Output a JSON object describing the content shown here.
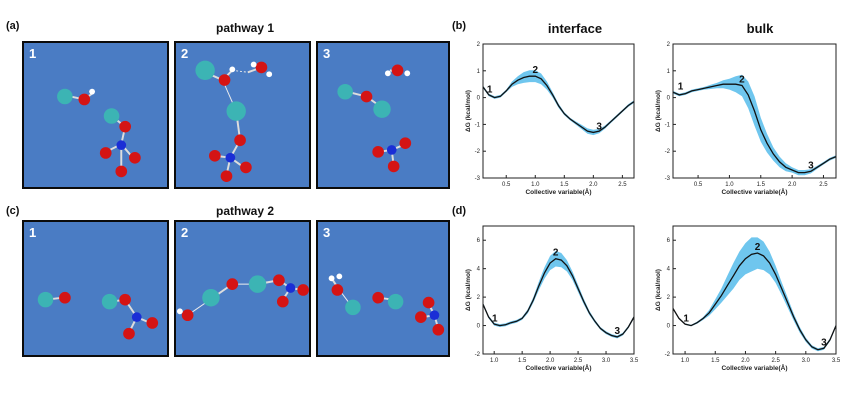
{
  "panel_labels": {
    "a": "(a)",
    "b": "(b)",
    "c": "(c)",
    "d": "(d)"
  },
  "pathway1_title": "pathway 1",
  "pathway2_title": "pathway 2",
  "column_titles": {
    "interface": "interface",
    "bulk": "bulk"
  },
  "snapshot_steps": [
    "1",
    "2",
    "3"
  ],
  "colors": {
    "water_bg": "#4a7cc4",
    "curve": "#111111",
    "band": "#6fc6ee",
    "oxygen": "#d41414",
    "nitrogen": "#1a2ed6",
    "cl_atom": "#3cb4b4",
    "hydrogen": "#ffffff"
  },
  "chart_data": [
    {
      "type": "line",
      "name": "interface",
      "row": "top",
      "xlabel": "Collective variable(Å)",
      "ylabel": "ΔG (kcal/mol)",
      "xlim": [
        0.1,
        2.7
      ],
      "ylim": [
        -3,
        2
      ],
      "xticks": [
        0.5,
        1.0,
        1.5,
        2.0,
        2.5
      ],
      "xtick_labels": [
        "0.5",
        "1.0",
        "1.5",
        "2.0",
        "2.5"
      ],
      "yticks": [
        -3,
        -2,
        -1,
        0,
        1,
        2
      ],
      "ytick_labels": [
        "-3",
        "-2",
        "-1",
        "0",
        "1",
        "2"
      ],
      "x": [
        0.1,
        0.2,
        0.3,
        0.4,
        0.5,
        0.6,
        0.7,
        0.8,
        0.9,
        1.0,
        1.1,
        1.2,
        1.3,
        1.4,
        1.5,
        1.6,
        1.7,
        1.8,
        1.9,
        2.0,
        2.1,
        2.2,
        2.3,
        2.4,
        2.5,
        2.6,
        2.7
      ],
      "y": [
        0.4,
        0.1,
        0.0,
        0.05,
        0.25,
        0.5,
        0.65,
        0.75,
        0.8,
        0.8,
        0.7,
        0.45,
        0.1,
        -0.3,
        -0.6,
        -0.8,
        -0.95,
        -1.1,
        -1.25,
        -1.3,
        -1.25,
        -1.1,
        -0.9,
        -0.7,
        -0.5,
        -0.3,
        -0.15
      ],
      "band": [
        0.05,
        0.05,
        0.05,
        0.05,
        0.05,
        0.1,
        0.15,
        0.2,
        0.22,
        0.22,
        0.2,
        0.15,
        0.1,
        0.08,
        0.06,
        0.05,
        0.06,
        0.08,
        0.1,
        0.1,
        0.08,
        0.06,
        0.05,
        0.05,
        0.05,
        0.05,
        0.05
      ],
      "markers": [
        {
          "label": "1",
          "x": 0.3,
          "y": 0.05
        },
        {
          "label": "2",
          "x": 1.0,
          "y": 0.8
        },
        {
          "label": "3",
          "x": 2.1,
          "y": -1.3
        }
      ]
    },
    {
      "type": "line",
      "name": "bulk",
      "row": "top",
      "xlabel": "Collective variable(Å)",
      "ylabel": "ΔG (kcal/mol)",
      "xlim": [
        0.1,
        2.7
      ],
      "ylim": [
        -3,
        2
      ],
      "xticks": [
        0.5,
        1.0,
        1.5,
        2.0,
        2.5
      ],
      "xtick_labels": [
        "0.5",
        "1.0",
        "1.5",
        "2.0",
        "2.5"
      ],
      "yticks": [
        -3,
        -2,
        -1,
        0,
        1,
        2
      ],
      "ytick_labels": [
        "-3",
        "-2",
        "-1",
        "0",
        "1",
        "2"
      ],
      "x": [
        0.1,
        0.2,
        0.3,
        0.4,
        0.5,
        0.6,
        0.7,
        0.8,
        0.9,
        1.0,
        1.1,
        1.2,
        1.3,
        1.4,
        1.5,
        1.6,
        1.7,
        1.8,
        1.9,
        2.0,
        2.1,
        2.2,
        2.3,
        2.4,
        2.5,
        2.6,
        2.7
      ],
      "y": [
        0.2,
        0.1,
        0.15,
        0.25,
        0.3,
        0.35,
        0.4,
        0.45,
        0.5,
        0.5,
        0.5,
        0.45,
        0.1,
        -0.5,
        -1.2,
        -1.7,
        -2.1,
        -2.4,
        -2.6,
        -2.7,
        -2.8,
        -2.8,
        -2.75,
        -2.6,
        -2.45,
        -2.3,
        -2.2
      ],
      "band": [
        0.05,
        0.05,
        0.05,
        0.05,
        0.05,
        0.05,
        0.08,
        0.1,
        0.15,
        0.2,
        0.3,
        0.4,
        0.5,
        0.55,
        0.45,
        0.35,
        0.25,
        0.2,
        0.15,
        0.1,
        0.1,
        0.1,
        0.08,
        0.06,
        0.05,
        0.05,
        0.05
      ],
      "markers": [
        {
          "label": "1",
          "x": 0.3,
          "y": 0.15
        },
        {
          "label": "2",
          "x": 1.2,
          "y": 0.45
        },
        {
          "label": "3",
          "x": 2.3,
          "y": -2.75
        }
      ]
    },
    {
      "type": "line",
      "name": "interface",
      "row": "bottom",
      "xlabel": "Collective variable(Å)",
      "ylabel": "ΔG (kcal/mol)",
      "xlim": [
        0.8,
        3.5
      ],
      "ylim": [
        -2,
        7
      ],
      "xticks": [
        1.0,
        1.5,
        2.0,
        2.5,
        3.0,
        3.5
      ],
      "xtick_labels": [
        "1.0",
        "1.5",
        "2.0",
        "2.5",
        "3.0",
        "3.5"
      ],
      "yticks": [
        -2,
        0,
        2,
        4,
        6
      ],
      "ytick_labels": [
        "-2",
        "0",
        "2",
        "4",
        "6"
      ],
      "x": [
        0.8,
        0.9,
        1.0,
        1.1,
        1.2,
        1.3,
        1.4,
        1.5,
        1.6,
        1.7,
        1.8,
        1.9,
        2.0,
        2.1,
        2.2,
        2.3,
        2.4,
        2.5,
        2.6,
        2.7,
        2.8,
        2.9,
        3.0,
        3.1,
        3.2,
        3.3,
        3.4,
        3.5
      ],
      "y": [
        1.5,
        0.6,
        0.1,
        0.0,
        0.05,
        0.2,
        0.3,
        0.5,
        1.0,
        1.8,
        2.8,
        3.7,
        4.4,
        4.7,
        4.6,
        4.2,
        3.5,
        2.6,
        1.7,
        0.9,
        0.3,
        -0.2,
        -0.5,
        -0.7,
        -0.8,
        -0.6,
        -0.1,
        0.6
      ],
      "band": [
        0.1,
        0.1,
        0.1,
        0.1,
        0.1,
        0.1,
        0.1,
        0.1,
        0.15,
        0.2,
        0.3,
        0.4,
        0.5,
        0.55,
        0.5,
        0.4,
        0.3,
        0.25,
        0.2,
        0.15,
        0.12,
        0.1,
        0.1,
        0.1,
        0.1,
        0.1,
        0.1,
        0.1
      ],
      "markers": [
        {
          "label": "1",
          "x": 1.1,
          "y": 0.0
        },
        {
          "label": "2",
          "x": 2.1,
          "y": 4.7
        },
        {
          "label": "3",
          "x": 3.2,
          "y": -0.8
        }
      ]
    },
    {
      "type": "line",
      "name": "bulk",
      "row": "bottom",
      "xlabel": "Collective variable(Å)",
      "ylabel": "ΔG (kcal/mol)",
      "xlim": [
        0.8,
        3.5
      ],
      "ylim": [
        -2,
        7
      ],
      "xticks": [
        1.0,
        1.5,
        2.0,
        2.5,
        3.0,
        3.5
      ],
      "xtick_labels": [
        "1.0",
        "1.5",
        "2.0",
        "2.5",
        "3.0",
        "3.5"
      ],
      "yticks": [
        -2,
        0,
        2,
        4,
        6
      ],
      "ytick_labels": [
        "-2",
        "0",
        "2",
        "4",
        "6"
      ],
      "x": [
        0.8,
        0.9,
        1.0,
        1.1,
        1.2,
        1.3,
        1.4,
        1.5,
        1.6,
        1.7,
        1.8,
        1.9,
        2.0,
        2.1,
        2.2,
        2.3,
        2.4,
        2.5,
        2.6,
        2.7,
        2.8,
        2.9,
        3.0,
        3.1,
        3.2,
        3.3,
        3.4,
        3.5
      ],
      "y": [
        1.2,
        0.5,
        0.1,
        0.0,
        0.2,
        0.5,
        0.9,
        1.5,
        2.1,
        2.8,
        3.5,
        4.2,
        4.7,
        5.0,
        5.1,
        4.9,
        4.4,
        3.6,
        2.6,
        1.6,
        0.6,
        -0.3,
        -1.0,
        -1.5,
        -1.7,
        -1.6,
        -1.0,
        0.0
      ],
      "band": [
        0.05,
        0.05,
        0.05,
        0.05,
        0.08,
        0.1,
        0.2,
        0.35,
        0.5,
        0.7,
        0.9,
        1.0,
        1.1,
        1.2,
        1.1,
        1.0,
        0.8,
        0.6,
        0.45,
        0.35,
        0.25,
        0.2,
        0.15,
        0.12,
        0.1,
        0.1,
        0.1,
        0.1
      ],
      "markers": [
        {
          "label": "1",
          "x": 1.1,
          "y": 0.0
        },
        {
          "label": "2",
          "x": 2.2,
          "y": 5.1
        },
        {
          "label": "3",
          "x": 3.3,
          "y": -1.6
        }
      ]
    }
  ]
}
